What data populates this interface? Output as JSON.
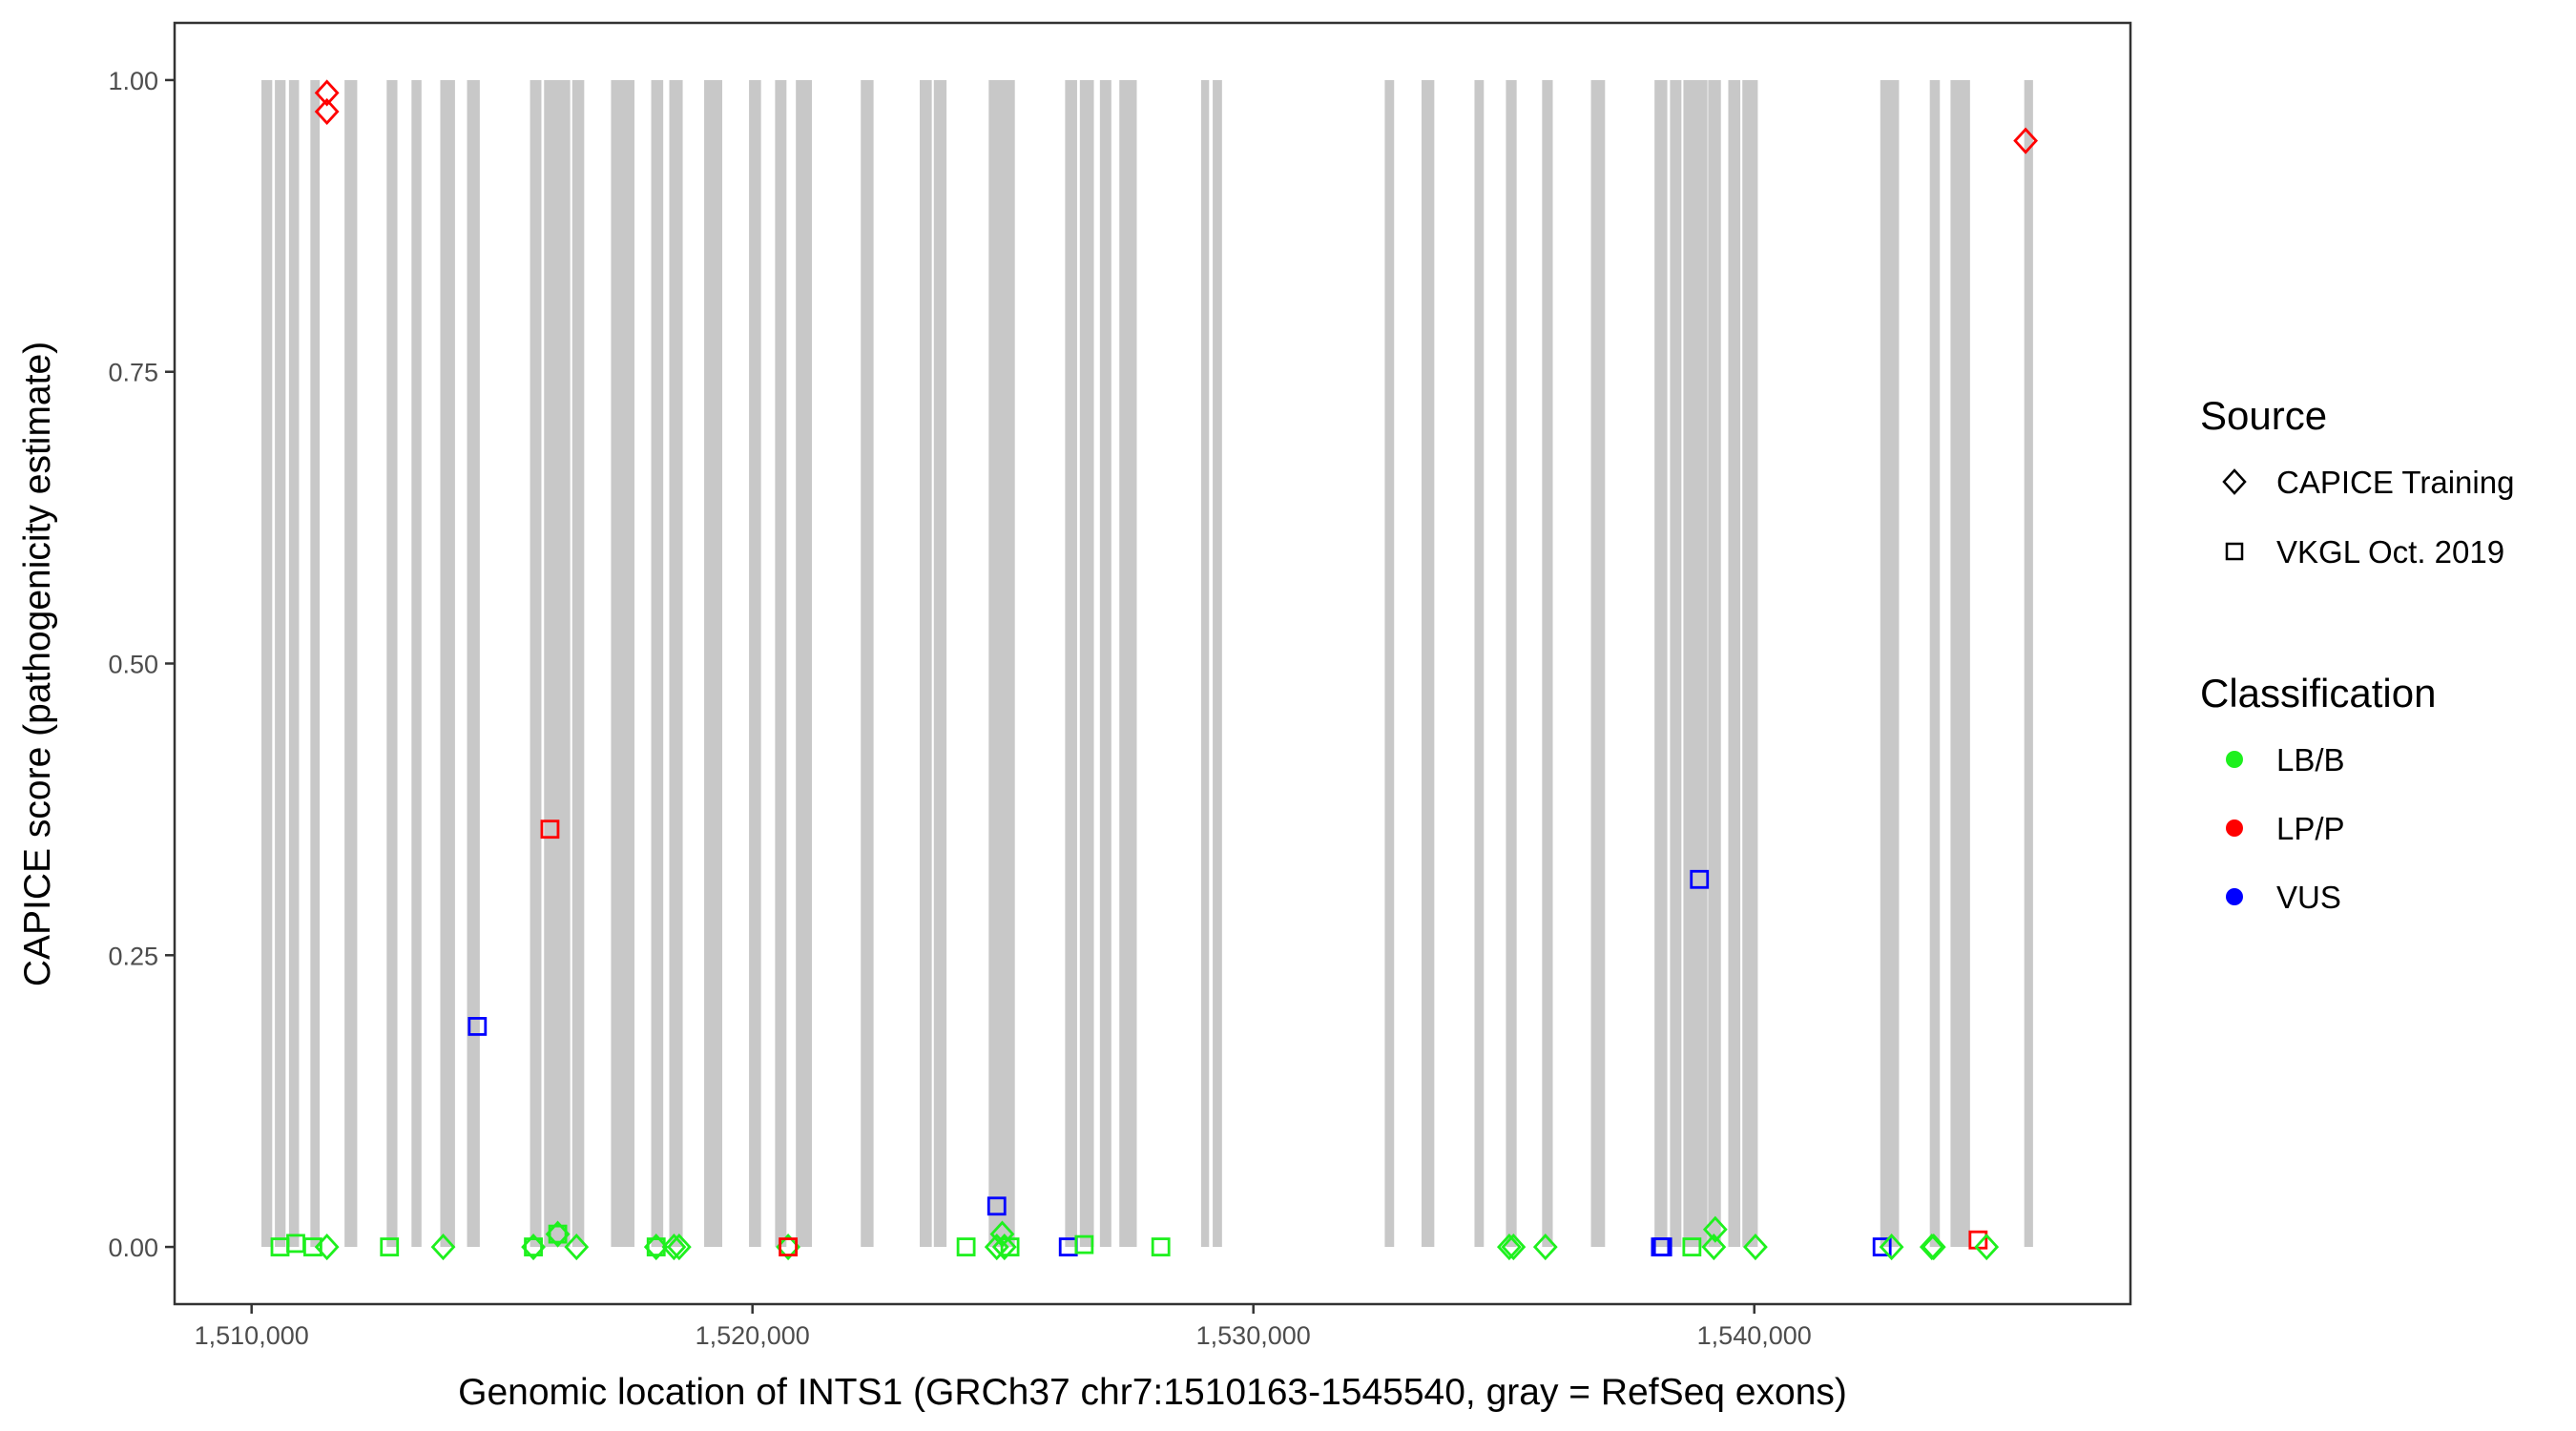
{
  "chart_data": {
    "type": "scatter",
    "xlabel": "Genomic location of INTS1 (GRCh37 chr7:1510163-1545540, gray = RefSeq exons)",
    "ylabel": "CAPICE score (pathogenicity estimate)",
    "xlim": [
      1508463,
      1547510
    ],
    "ylim": [
      -0.049,
      1.049
    ],
    "x_ticks": [
      1510000,
      1520000,
      1530000,
      1540000
    ],
    "x_tick_labels": [
      "1,510,000",
      "1,520,000",
      "1,530,000",
      "1,540,000"
    ],
    "y_ticks": [
      0,
      0.25,
      0.5,
      0.75,
      1
    ],
    "y_tick_labels": [
      "0.00",
      "0.25",
      "0.50",
      "0.75",
      "1.00"
    ],
    "grid": false,
    "legend_position": "right",
    "exon_color": "#c8c8c8",
    "exons": [
      [
        1510197,
        1510412
      ],
      [
        1510465,
        1510679
      ],
      [
        1510746,
        1510947
      ],
      [
        1511174,
        1511360
      ],
      [
        1511856,
        1512109
      ],
      [
        1512697,
        1512911
      ],
      [
        1513193,
        1513392
      ],
      [
        1513767,
        1514061
      ],
      [
        1514301,
        1514556
      ],
      [
        1515559,
        1515786
      ],
      [
        1515839,
        1516361
      ],
      [
        1516401,
        1516641
      ],
      [
        1517176,
        1517644
      ],
      [
        1517978,
        1518218
      ],
      [
        1518339,
        1518607
      ],
      [
        1519035,
        1519396
      ],
      [
        1519931,
        1520171
      ],
      [
        1520451,
        1520679
      ],
      [
        1520866,
        1521187
      ],
      [
        1522162,
        1522417
      ],
      [
        1523339,
        1523580
      ],
      [
        1523620,
        1523874
      ],
      [
        1524716,
        1525238
      ],
      [
        1526241,
        1526481
      ],
      [
        1526535,
        1526816
      ],
      [
        1526936,
        1527164
      ],
      [
        1527324,
        1527672
      ],
      [
        1528956,
        1529116
      ],
      [
        1529188,
        1529374
      ],
      [
        1532623,
        1532810
      ],
      [
        1533357,
        1533612
      ],
      [
        1534414,
        1534601
      ],
      [
        1535042,
        1535256
      ],
      [
        1535764,
        1535977
      ],
      [
        1536740,
        1537021
      ],
      [
        1538009,
        1538264
      ],
      [
        1538318,
        1538545
      ],
      [
        1538585,
        1539066
      ],
      [
        1539079,
        1539334
      ],
      [
        1539481,
        1539721
      ],
      [
        1539762,
        1540070
      ],
      [
        1542516,
        1542890
      ],
      [
        1543504,
        1543705
      ],
      [
        1543918,
        1544307
      ],
      [
        1545390,
        1545565
      ]
    ],
    "legend": {
      "source_title": "Source",
      "source_items": [
        {
          "label": "CAPICE Training",
          "shape": "diamond"
        },
        {
          "label": "VKGL Oct. 2019",
          "shape": "square"
        }
      ],
      "class_title": "Classification",
      "class_items": [
        {
          "label": "LB/B",
          "color": "#1ef01e"
        },
        {
          "label": "LP/P",
          "color": "#ff0000"
        },
        {
          "label": "VUS",
          "color": "#0000ff"
        }
      ]
    },
    "points": [
      {
        "x": 1511504,
        "y": 0.989,
        "source": "CAPICE Training",
        "class": "LP/P"
      },
      {
        "x": 1511504,
        "y": 0.973,
        "source": "CAPICE Training",
        "class": "LP/P"
      },
      {
        "x": 1545417,
        "y": 0.948,
        "source": "CAPICE Training",
        "class": "LP/P"
      },
      {
        "x": 1515957,
        "y": 0.358,
        "source": "VKGL Oct. 2019",
        "class": "LP/P"
      },
      {
        "x": 1514507,
        "y": 0.189,
        "source": "VKGL Oct. 2019",
        "class": "VUS"
      },
      {
        "x": 1524877,
        "y": 0.035,
        "source": "VKGL Oct. 2019",
        "class": "VUS"
      },
      {
        "x": 1538905,
        "y": 0.315,
        "source": "VKGL Oct. 2019",
        "class": "VUS"
      },
      {
        "x": 1510568,
        "y": 0.0,
        "source": "VKGL Oct. 2019",
        "class": "LB/B"
      },
      {
        "x": 1510882,
        "y": 0.003,
        "source": "VKGL Oct. 2019",
        "class": "LB/B"
      },
      {
        "x": 1511223,
        "y": 0.0,
        "source": "VKGL Oct. 2019",
        "class": "LB/B"
      },
      {
        "x": 1511504,
        "y": 0.0,
        "source": "CAPICE Training",
        "class": "LB/B"
      },
      {
        "x": 1512753,
        "y": 0.0,
        "source": "VKGL Oct. 2019",
        "class": "LB/B"
      },
      {
        "x": 1513825,
        "y": 0.0,
        "source": "CAPICE Training",
        "class": "LB/B"
      },
      {
        "x": 1515626,
        "y": 0.0,
        "source": "CAPICE Training",
        "class": "LB/B"
      },
      {
        "x": 1515626,
        "y": 0.0,
        "source": "VKGL Oct. 2019",
        "class": "LB/B"
      },
      {
        "x": 1516112,
        "y": 0.011,
        "source": "CAPICE Training",
        "class": "LB/B"
      },
      {
        "x": 1516112,
        "y": 0.011,
        "source": "VKGL Oct. 2019",
        "class": "LB/B"
      },
      {
        "x": 1516487,
        "y": 0.0,
        "source": "CAPICE Training",
        "class": "LB/B"
      },
      {
        "x": 1518077,
        "y": 0.0,
        "source": "CAPICE Training",
        "class": "LB/B"
      },
      {
        "x": 1518077,
        "y": 0.0,
        "source": "VKGL Oct. 2019",
        "class": "LB/B"
      },
      {
        "x": 1518433,
        "y": 0.0,
        "source": "CAPICE Training",
        "class": "LB/B"
      },
      {
        "x": 1518536,
        "y": 0.0,
        "source": "CAPICE Training",
        "class": "LB/B"
      },
      {
        "x": 1520712,
        "y": 0.0,
        "source": "CAPICE Training",
        "class": "LB/B"
      },
      {
        "x": 1520712,
        "y": 0.0,
        "source": "VKGL Oct. 2019",
        "class": "LP/P"
      },
      {
        "x": 1524265,
        "y": 0.0,
        "source": "VKGL Oct. 2019",
        "class": "LB/B"
      },
      {
        "x": 1524877,
        "y": 0.0,
        "source": "CAPICE Training",
        "class": "LB/B"
      },
      {
        "x": 1524986,
        "y": 0.011,
        "source": "CAPICE Training",
        "class": "LB/B"
      },
      {
        "x": 1525030,
        "y": 0.0,
        "source": "CAPICE Training",
        "class": "LB/B"
      },
      {
        "x": 1525141,
        "y": 0.0,
        "source": "VKGL Oct. 2019",
        "class": "LB/B"
      },
      {
        "x": 1526305,
        "y": 0.0,
        "source": "VKGL Oct. 2019",
        "class": "VUS"
      },
      {
        "x": 1526622,
        "y": 0.002,
        "source": "VKGL Oct. 2019",
        "class": "LB/B"
      },
      {
        "x": 1528152,
        "y": 0.0,
        "source": "VKGL Oct. 2019",
        "class": "LB/B"
      },
      {
        "x": 1535108,
        "y": 0.0,
        "source": "CAPICE Training",
        "class": "LB/B"
      },
      {
        "x": 1535193,
        "y": 0.0,
        "source": "CAPICE Training",
        "class": "LB/B"
      },
      {
        "x": 1535830,
        "y": 0.0,
        "source": "CAPICE Training",
        "class": "LB/B"
      },
      {
        "x": 1538127,
        "y": 0.0,
        "source": "VKGL Oct. 2019",
        "class": "VUS"
      },
      {
        "x": 1538171,
        "y": 0.0,
        "source": "VKGL Oct. 2019",
        "class": "VUS"
      },
      {
        "x": 1538755,
        "y": 0.0,
        "source": "VKGL Oct. 2019",
        "class": "LB/B"
      },
      {
        "x": 1539221,
        "y": 0.015,
        "source": "CAPICE Training",
        "class": "LB/B"
      },
      {
        "x": 1539193,
        "y": 0.0,
        "source": "CAPICE Training",
        "class": "LB/B"
      },
      {
        "x": 1540023,
        "y": 0.0,
        "source": "CAPICE Training",
        "class": "LB/B"
      },
      {
        "x": 1542552,
        "y": 0.0,
        "source": "VKGL Oct. 2019",
        "class": "VUS"
      },
      {
        "x": 1542741,
        "y": 0.0,
        "source": "CAPICE Training",
        "class": "LB/B"
      },
      {
        "x": 1543545,
        "y": 0.0,
        "source": "CAPICE Training",
        "class": "LB/B"
      },
      {
        "x": 1543582,
        "y": 0.0,
        "source": "CAPICE Training",
        "class": "LB/B"
      },
      {
        "x": 1544469,
        "y": 0.006,
        "source": "VKGL Oct. 2019",
        "class": "LP/P"
      },
      {
        "x": 1544638,
        "y": 0.0,
        "source": "CAPICE Training",
        "class": "LB/B"
      }
    ]
  }
}
